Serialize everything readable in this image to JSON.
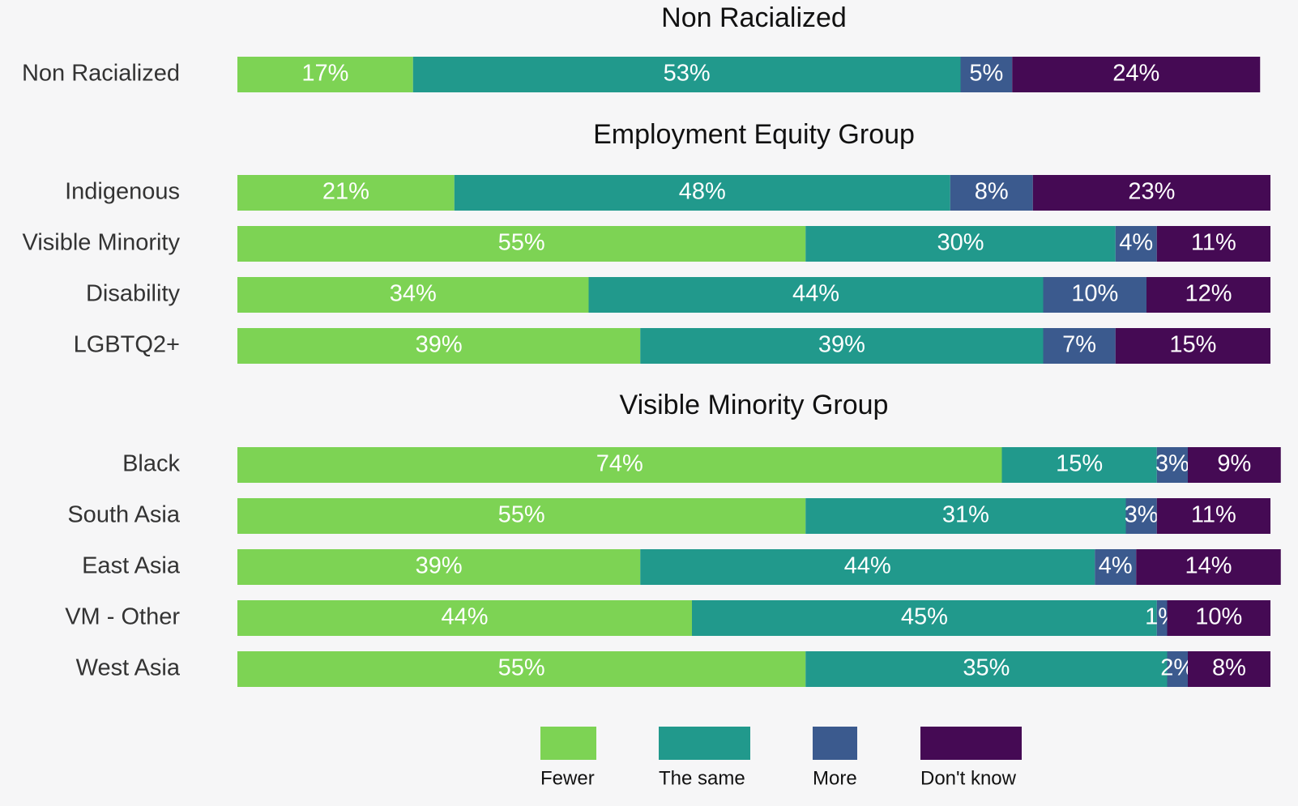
{
  "chart_data": {
    "type": "bar",
    "orientation": "horizontal",
    "stacked": true,
    "xlim": [
      0,
      100
    ],
    "legend": "bottom",
    "groups": [
      {
        "title": "Non Racialized",
        "categories": [
          "Non Racialized"
        ]
      },
      {
        "title": "Employment Equity Group",
        "categories": [
          "Indigenous",
          "Visible Minority",
          "Disability",
          "LGBTQ2+"
        ]
      },
      {
        "title": "Visible Minority Group",
        "categories": [
          "Black",
          "South Asia",
          "East Asia",
          "VM - Other",
          "West Asia"
        ]
      }
    ],
    "series": [
      {
        "name": "Fewer",
        "color": "#7dd354",
        "values": [
          [
            17
          ],
          [
            21,
            55,
            34,
            39
          ],
          [
            74,
            55,
            39,
            44,
            55
          ]
        ],
        "value_labels": [
          [
            "17%"
          ],
          [
            "21%",
            "55%",
            "34%",
            "39%"
          ],
          [
            "74%",
            "55%",
            "39%",
            "44%",
            "55%"
          ]
        ]
      },
      {
        "name": "The same",
        "color": "#21998c",
        "values": [
          [
            53
          ],
          [
            48,
            30,
            44,
            39
          ],
          [
            15,
            31,
            44,
            45,
            35
          ]
        ],
        "value_labels": [
          [
            "53%"
          ],
          [
            "48%",
            "30%",
            "44%",
            "39%"
          ],
          [
            "15%",
            "31%",
            "44%",
            "45%",
            "35%"
          ]
        ]
      },
      {
        "name": "More",
        "color": "#3b5a8e",
        "values": [
          [
            5
          ],
          [
            8,
            4,
            10,
            7
          ],
          [
            3,
            3,
            4,
            1,
            2
          ]
        ],
        "value_labels": [
          [
            "5%"
          ],
          [
            "8%",
            "4%",
            "10%",
            "7%"
          ],
          [
            "3%",
            "3%",
            "4%",
            "1%",
            "2%"
          ]
        ]
      },
      {
        "name": "Don't know",
        "color": "#450a54",
        "values": [
          [
            24
          ],
          [
            23,
            11,
            12,
            15
          ],
          [
            9,
            11,
            14,
            10,
            8
          ]
        ],
        "value_labels": [
          [
            "24%"
          ],
          [
            "23%",
            "11%",
            "12%",
            "15%"
          ],
          [
            "9%",
            "11%",
            "14%",
            "10%",
            "8%"
          ]
        ]
      }
    ]
  }
}
